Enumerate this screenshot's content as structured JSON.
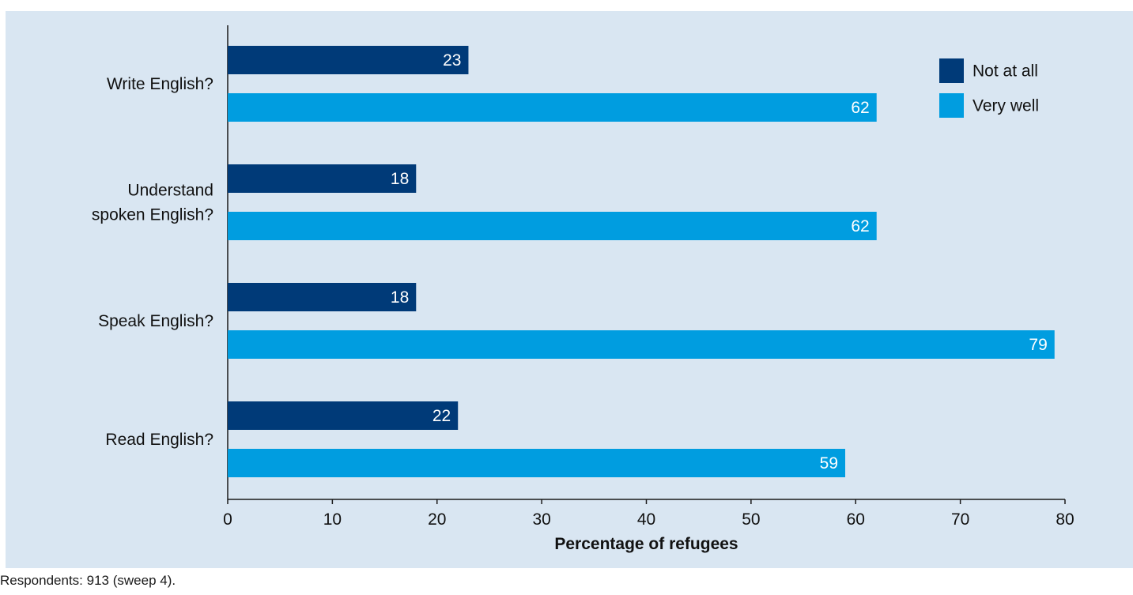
{
  "header": {
    "title": ""
  },
  "footnote": "Respondents: 913 (sweep 4).",
  "colors": {
    "panel_background": "#d9e6f2",
    "not_at_all": "#003a78",
    "very_well": "#009de0",
    "axis": "#1a1a1a"
  },
  "chart_data": {
    "type": "bar",
    "orientation": "horizontal",
    "categories": [
      "Write English?",
      "Understand spoken English?",
      "Speak English?",
      "Read English?"
    ],
    "category_lines": [
      [
        "Write English?"
      ],
      [
        "Understand",
        "spoken English?"
      ],
      [
        "Speak English?"
      ],
      [
        "Read English?"
      ]
    ],
    "series": [
      {
        "name": "Not at all",
        "values": [
          23,
          18,
          18,
          22
        ]
      },
      {
        "name": "Very well",
        "values": [
          62,
          62,
          79,
          59
        ]
      }
    ],
    "xlabel": "Percentage of refugees",
    "ylabel": "",
    "xlim": [
      0,
      80
    ],
    "xticks": [
      0,
      10,
      20,
      30,
      40,
      50,
      60,
      70,
      80
    ],
    "data_labels": true,
    "grid": false,
    "legend_position": "top-right"
  }
}
